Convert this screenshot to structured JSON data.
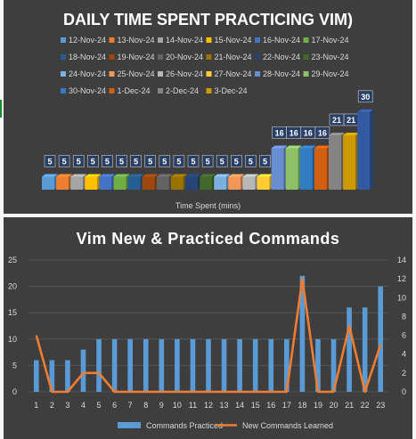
{
  "chart_data": [
    {
      "type": "bar",
      "title": "DAILY TIME SPENT PRACTICING VIM)",
      "xlabel": "Time Spent (mins)",
      "ylabel": "",
      "legend": "top",
      "grid": false,
      "ylim": [
        0,
        32
      ],
      "series": [
        {
          "name": "12-Nov-24",
          "values": [
            5
          ],
          "color": "#5b9bd5"
        },
        {
          "name": "13-Nov-24",
          "values": [
            5
          ],
          "color": "#ed7d31"
        },
        {
          "name": "14-Nov-24",
          "values": [
            5
          ],
          "color": "#a5a5a5"
        },
        {
          "name": "15-Nov-24",
          "values": [
            5
          ],
          "color": "#ffc000"
        },
        {
          "name": "16-Nov-24",
          "values": [
            5
          ],
          "color": "#4472c4"
        },
        {
          "name": "17-Nov-24",
          "values": [
            5
          ],
          "color": "#70ad47"
        },
        {
          "name": "18-Nov-24",
          "values": [
            5
          ],
          "color": "#255e91"
        },
        {
          "name": "19-Nov-24",
          "values": [
            5
          ],
          "color": "#9e480e"
        },
        {
          "name": "20-Nov-24",
          "values": [
            5
          ],
          "color": "#636363"
        },
        {
          "name": "21-Nov-24",
          "values": [
            5
          ],
          "color": "#997300"
        },
        {
          "name": "22-Nov-24",
          "values": [
            5
          ],
          "color": "#264478"
        },
        {
          "name": "23-Nov-24",
          "values": [
            5
          ],
          "color": "#43682b"
        },
        {
          "name": "24-Nov-24",
          "values": [
            5
          ],
          "color": "#7cafdd"
        },
        {
          "name": "25-Nov-24",
          "values": [
            5
          ],
          "color": "#f1975a"
        },
        {
          "name": "26-Nov-24",
          "values": [
            5
          ],
          "color": "#b7b7b7"
        },
        {
          "name": "27-Nov-24",
          "values": [
            5
          ],
          "color": "#ffcd33"
        },
        {
          "name": "28-Nov-24",
          "values": [
            16
          ],
          "color": "#698ed0"
        },
        {
          "name": "29-Nov-24",
          "values": [
            16
          ],
          "color": "#8cc168"
        },
        {
          "name": "30-Nov-24",
          "values": [
            16
          ],
          "color": "#327dc2"
        },
        {
          "name": "1-Dec-24",
          "values": [
            16
          ],
          "color": "#d26012"
        },
        {
          "name": "2-Dec-24",
          "values": [
            21
          ],
          "color": "#848484"
        },
        {
          "name": "3-Dec-24",
          "values": [
            21
          ],
          "color": "#cc9a00"
        },
        {
          "name": "",
          "values": [
            30
          ],
          "color": "#335aa1"
        }
      ]
    },
    {
      "type": "bar",
      "title": "Vim New & Practiced Commands",
      "xlabel": "",
      "ylabel": "",
      "legend": "bottom",
      "grid": true,
      "categories": [
        "1",
        "2",
        "3",
        "4",
        "5",
        "6",
        "7",
        "8",
        "9",
        "10",
        "11",
        "12",
        "13",
        "14",
        "15",
        "16",
        "17",
        "18",
        "19",
        "20",
        "21",
        "22",
        "23"
      ],
      "ylim": [
        0,
        25
      ],
      "y2lim": [
        0,
        14
      ],
      "yticks": [
        "0",
        "5",
        "10",
        "15",
        "20",
        "25"
      ],
      "y2ticks": [
        "0",
        "2",
        "4",
        "6",
        "8",
        "10",
        "12",
        "14"
      ],
      "series": [
        {
          "name": "Commands Practiced",
          "kind": "bar",
          "axis": "left",
          "color": "#5b9bd5",
          "values": [
            6,
            6,
            6,
            8,
            10,
            10,
            10,
            10,
            10,
            10,
            10,
            10,
            10,
            10,
            10,
            10,
            10,
            22,
            10,
            10,
            16,
            16,
            20
          ]
        },
        {
          "name": "New Commands Learned",
          "kind": "line",
          "axis": "right",
          "color": "#ed7d31",
          "values": [
            6,
            0,
            0,
            2,
            2,
            0,
            0,
            0,
            0,
            0,
            0,
            0,
            0,
            0,
            0,
            0,
            0,
            12,
            0,
            0,
            7,
            0,
            5
          ]
        }
      ]
    }
  ]
}
